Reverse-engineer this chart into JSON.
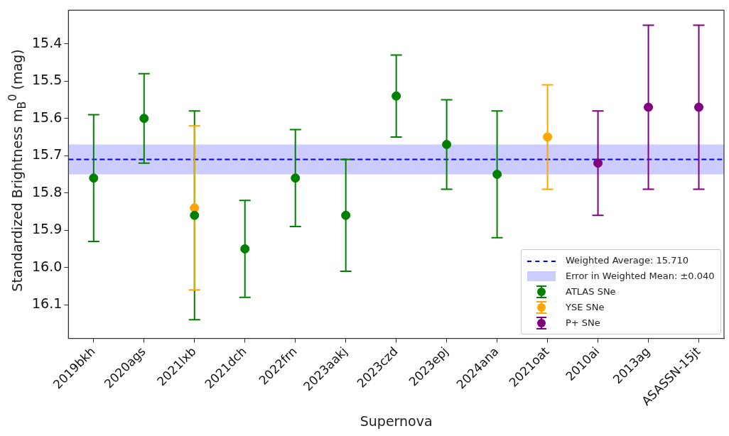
{
  "chart_data": {
    "type": "scatter",
    "xlabel": "Supernova",
    "ylabel": "Standardized Brightness m$_{B}$$^{0}$ (mag)",
    "categories": [
      "2019bkh",
      "2020ags",
      "2021lxb",
      "2021dch",
      "2022frn",
      "2023aakj",
      "2023czd",
      "2023epj",
      "2024ana",
      "2021oat",
      "2010ai",
      "2013ag",
      "ASASSN-15jt"
    ],
    "ylim": [
      16.19,
      15.31
    ],
    "yticks": [
      {
        "value": 15.4,
        "label": "15.4"
      },
      {
        "value": 15.5,
        "label": "15.5"
      },
      {
        "value": 15.6,
        "label": "15.6"
      },
      {
        "value": 15.7,
        "label": "15.7"
      },
      {
        "value": 15.8,
        "label": "15.8"
      },
      {
        "value": 15.9,
        "label": "15.9"
      },
      {
        "value": 16.0,
        "label": "16.0"
      },
      {
        "value": 16.1,
        "label": "16.1"
      }
    ],
    "series": [
      {
        "name": "ATLAS SNe",
        "color": "#008000",
        "x": [
          "2019bkh",
          "2020ags",
          "2021lxb",
          "2021dch",
          "2022frn",
          "2023aakj",
          "2023czd",
          "2023epj",
          "2024ana"
        ],
        "values": [
          15.76,
          15.6,
          15.86,
          15.95,
          15.76,
          15.86,
          15.54,
          15.67,
          15.75
        ],
        "errors": [
          0.17,
          0.12,
          0.28,
          0.13,
          0.13,
          0.15,
          0.11,
          0.12,
          0.17
        ]
      },
      {
        "name": "YSE SNe",
        "color": "#ffa500",
        "x": [
          "2021lxb",
          "2021oat"
        ],
        "values": [
          15.84,
          15.65
        ],
        "errors": [
          0.22,
          0.14
        ]
      },
      {
        "name": "P+ SNe",
        "color": "#800080",
        "x": [
          "2010ai",
          "2013ag",
          "ASASSN-15jt"
        ],
        "values": [
          15.72,
          15.57,
          15.57
        ],
        "errors": [
          0.14,
          0.22,
          0.22
        ]
      }
    ],
    "ref_lines": [
      {
        "axis": "y",
        "value": 15.71,
        "label": "Weighted Average: 15.710",
        "color": "#0000ff",
        "line_style": "dashed"
      }
    ],
    "bands": [
      {
        "axis": "y",
        "from": 15.67,
        "to": 15.75,
        "label": "Error in Weighted Mean: ±0.040",
        "color": "#ccccff"
      }
    ],
    "legend": "bottom right",
    "marker": "circle",
    "grid": false
  }
}
